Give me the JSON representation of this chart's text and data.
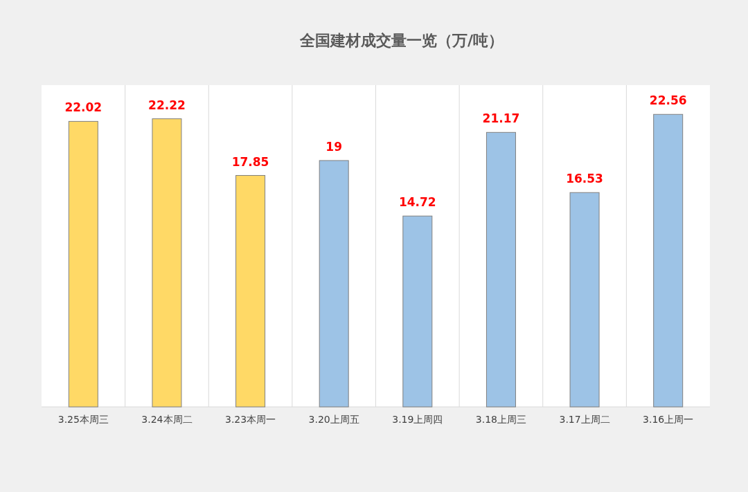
{
  "chart_data": {
    "type": "bar",
    "title": "全国建材成交量一览（万/吨）",
    "categories": [
      "3.25本周三",
      "3.24本周二",
      "3.23本周一",
      "3.20上周五",
      "3.19上周四",
      "3.18上周三",
      "3.17上周二",
      "3.16上周一"
    ],
    "values": [
      22.02,
      22.22,
      17.85,
      19,
      14.72,
      21.17,
      16.53,
      22.56
    ],
    "colors": [
      "#ffd966",
      "#ffd966",
      "#ffd966",
      "#9dc3e6",
      "#9dc3e6",
      "#9dc3e6",
      "#9dc3e6",
      "#9dc3e6"
    ],
    "data_labels": true,
    "grid": "x"
  }
}
